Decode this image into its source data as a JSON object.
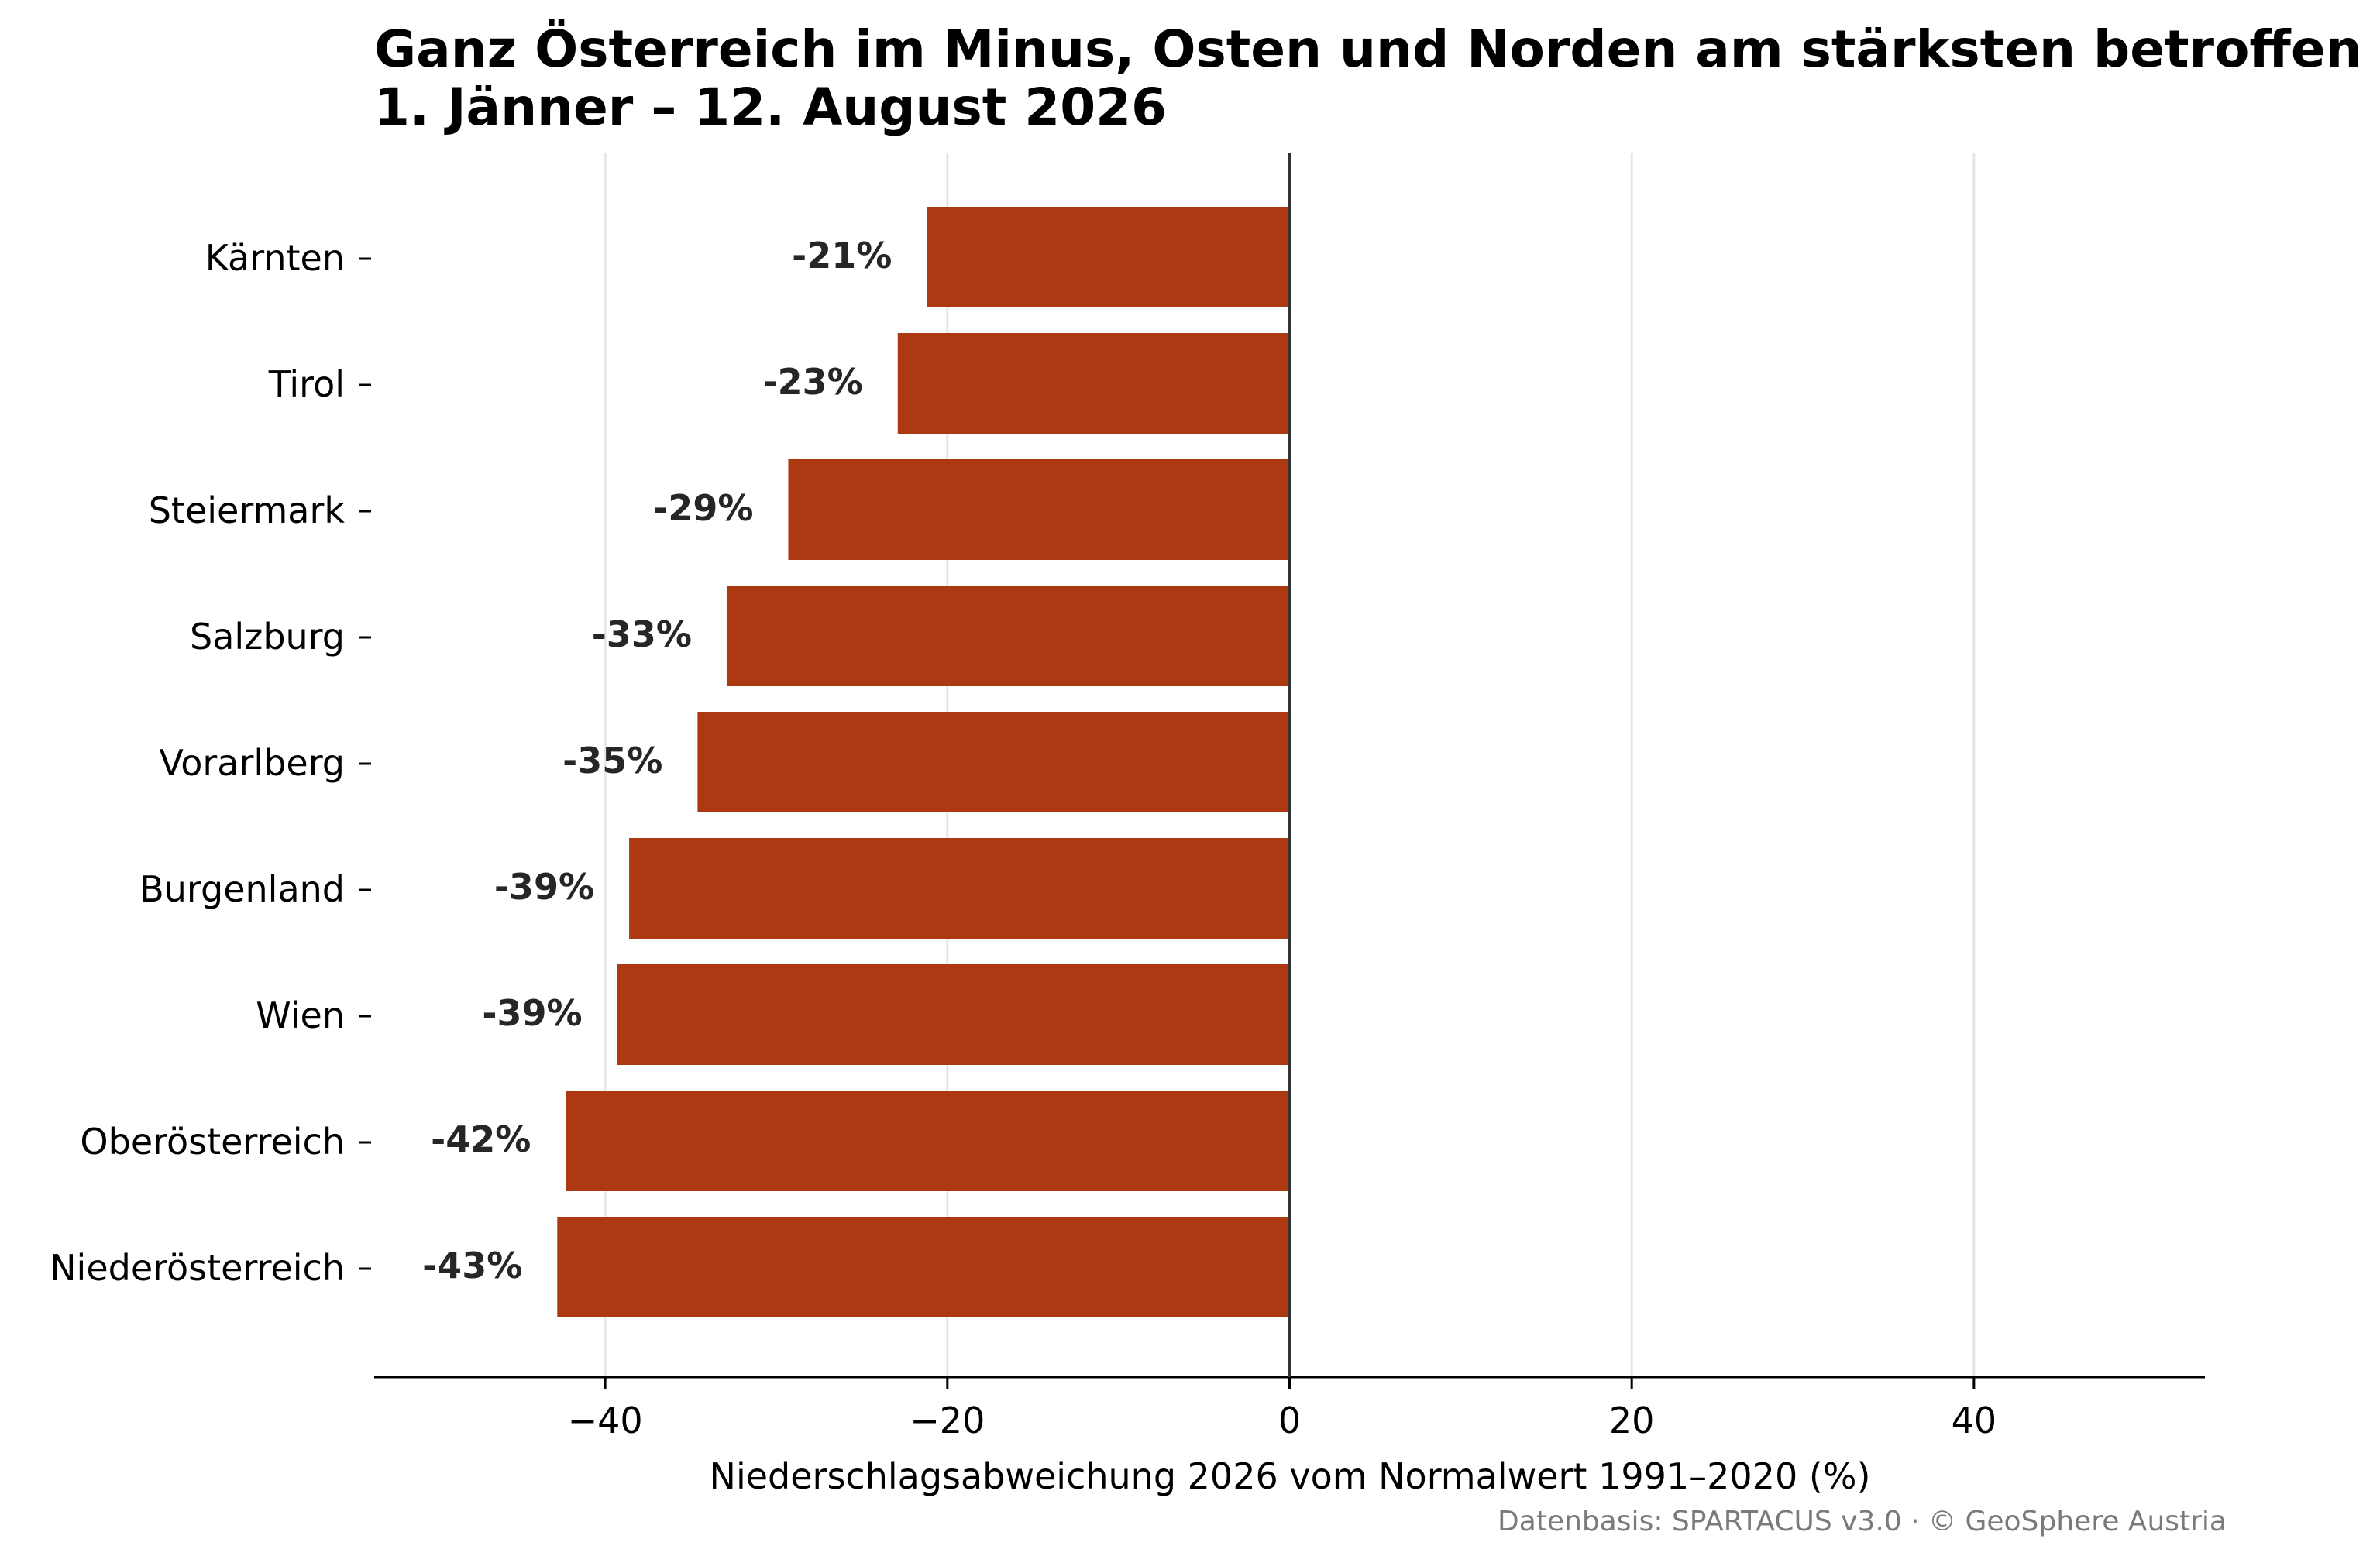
{
  "chart_data": {
    "type": "bar",
    "orientation": "horizontal",
    "title": "Ganz Österreich im Minus, Osten und Norden am stärksten betroffen",
    "subtitle": "1. Jänner – 12. August 2026",
    "xlabel": "Niederschlagsabweichung 2026 vom Normalwert 1991–2020 (%)",
    "ylabel": "",
    "xlim": [
      -53.5,
      53.5
    ],
    "xticks": [
      -40,
      -20,
      0,
      20,
      40
    ],
    "xtick_labels": [
      "−40",
      "−20",
      "0",
      "20",
      "40"
    ],
    "grid": "vertical",
    "categories": [
      "Kärnten",
      "Tirol",
      "Steiermark",
      "Salzburg",
      "Vorarlberg",
      "Burgenland",
      "Wien",
      "Oberösterreich",
      "Niederösterreich"
    ],
    "values": [
      -21.2,
      -22.9,
      -29.3,
      -32.9,
      -34.6,
      -38.6,
      -39.3,
      -42.3,
      -42.8
    ],
    "data_labels": [
      "-21%",
      "-23%",
      "-29%",
      "-33%",
      "-35%",
      "-39%",
      "-39%",
      "-42%",
      "-43%"
    ],
    "bar_color": "#ad3912",
    "source": "Datenbasis: SPARTACUS v3.0 · © GeoSphere Austria"
  }
}
